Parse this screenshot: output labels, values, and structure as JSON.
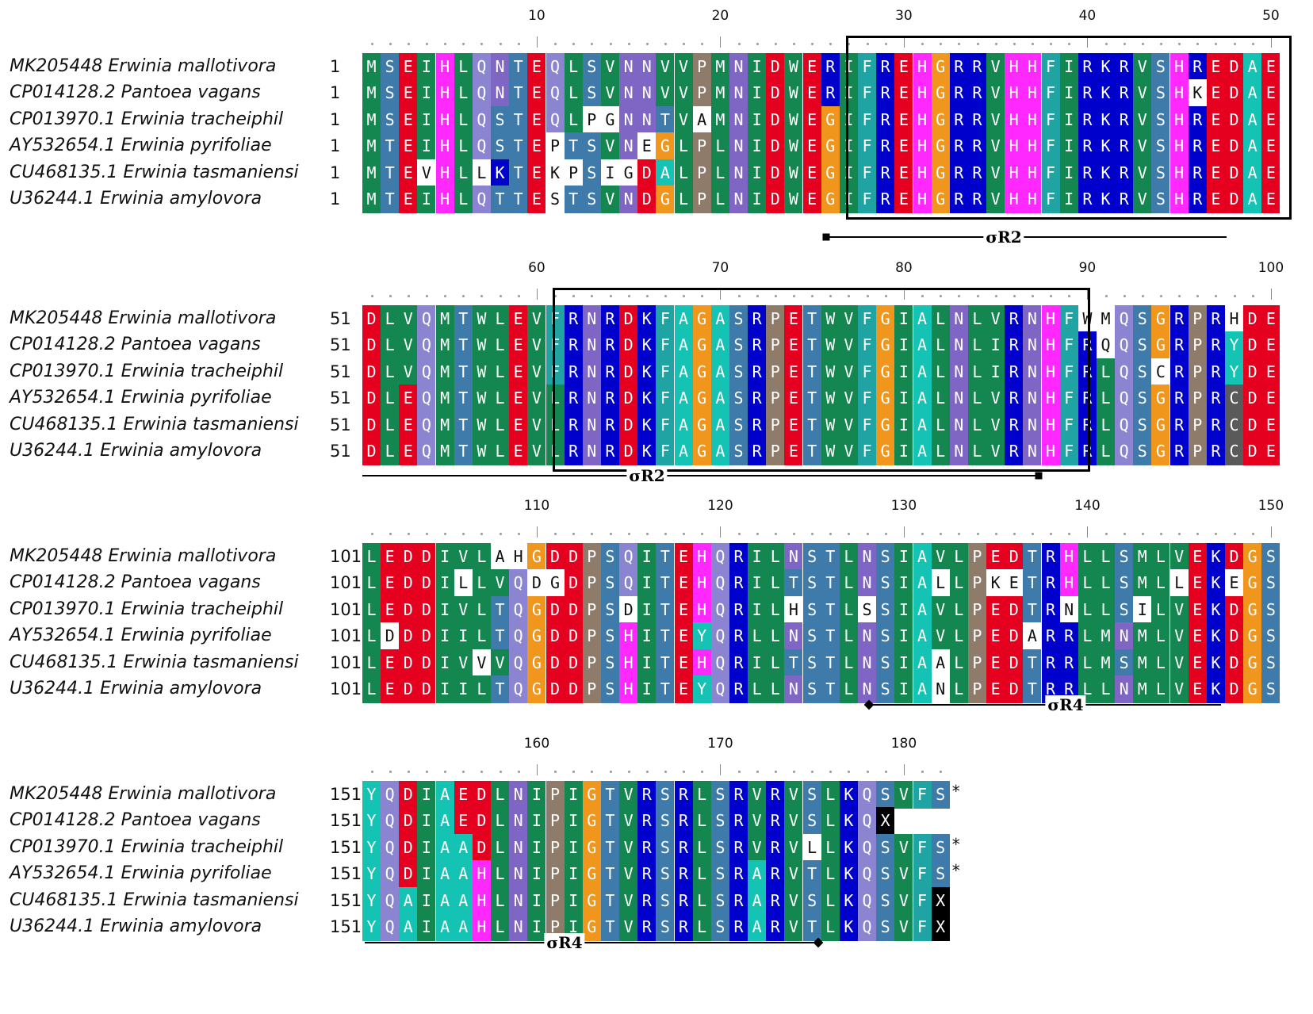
{
  "names": [
    "MK205448 Erwinia mallotivora",
    "CP014128.2 Pantoea vagans",
    "CP013970.1 Erwinia tracheiphil",
    "AY532654.1 Erwinia pyrifoliae",
    "CU468135.1 Erwinia tasmaniensi",
    "U36244.1 Erwinia amylovora"
  ],
  "blocks": [
    {
      "start": 1,
      "labels": [
        "10",
        "20",
        "30",
        "40",
        "50"
      ],
      "seqs": [
        "MSEIHLQNTEQLSVNNVVPMNIDWERIFREHGRRVHHFIRKRVSHREDAE",
        "MSEIHLQNTEQLSVNNVVPMNIDWERIFREHGRRVHHFIRKRVSHKEDAE",
        "MSEIHLQSTEQLPGNNTVAMNIDWEGIFREHGRRVHHFIRKRVSHREDAE",
        "MTEIHLQSTEPTSVNEGLPLNIDWEGIFREHGRRVHHFIRKRVSHREDAE",
        "MTEVHLLKTEKPSIGDALPLNIDWEGIFREHGRRVHHFIRKRVSHREDAE",
        "MTEIHLQTTESTSVNDGLPLNIDWEGIFREHGRRVHHFIRKRVSHREDAE"
      ],
      "domain": "σR2"
    },
    {
      "start": 51,
      "labels": [
        "60",
        "70",
        "80",
        "90",
        "100"
      ],
      "seqs": [
        "DLVQMTWLEVFRNRDKFAGASRPETWVFGIALNLVRNHFWMQSGRPRHDE",
        "DLVQMTWLEVFRNRDKFAGASRPETWVFGIALNLIRNHFRQQSGRPRYDE",
        "DLVQMTWLEVFRNRDKFAGASRPETWVFGIALNLIRNHFRLQSCRPRYDE",
        "DLEQMTWLEVLRNRDKFAGASRPETWVFGIALNLVRNHFRLQSGRPRCDE",
        "DLEQMTWLEVLRNRDKFAGASRPETWVFGIALNLVRNHFRLQSGRPRCDE",
        "DLEQMTWLEVLRNRDKFAGASRPETWVFGIALNLVRNHFRLQSGRPRCDE"
      ],
      "domain": "σR2"
    },
    {
      "start": 101,
      "labels": [
        "110",
        "120",
        "130",
        "140",
        "150"
      ],
      "seqs": [
        "LEDDIVLAHGDDPSQITEHQRILNSTLNSIAVLPEDTRHLLSMLVEKDGS",
        "LEDDILLVQDGDPSQITEHQRILTSTLNSIALLPKETRHLLSMLLEKEGS",
        "LEDDIVLTQGDDPSDITEHQRILHSTLSSIAVLPEDTRNLLSILVEKDGS",
        "LDDDIILTQGDDPSHITEYQRLLNSTLNSIAVLPEDARRLMNMLVEKDGS",
        "LEDDIVVVQGDDPSHITEHQRILTSTLNSIAALPEDTRRLMSMLVEKDGS",
        "LEDDIILTQGDDPSHITEYQRLLNSTLNSIANLPEDTRRLLNMLVEKDGS"
      ],
      "domain": "σR4"
    },
    {
      "start": 151,
      "labels": [
        "160",
        "170",
        "180"
      ],
      "seqs": [
        "YQDIAEDLNIPIGTVRSRLSRVRVSLKQSVFS",
        "YQDIAEDLNIPIGTVRSRLSRVRVSLKQX",
        "YQDIAADLNIPIGTVRSRLSRVRVLLKQSVFS",
        "YQDIAAHLNIPIGTVRSRLSRARVTLKQSVFS",
        "YQAIAAHLNIPIGTVRSRLSRARVSLKQSVFX",
        "YQAIAAHLNIPIGTVRSRLSRARVTLKQSVFX"
      ],
      "stop": "*",
      "domain": "σR4"
    }
  ],
  "colors": {
    "A": "#14c3b4",
    "C": "#5a5a5a",
    "D": "#e5001f",
    "E": "#e5001f",
    "F": "#1fa3a3",
    "G": "#f0961c",
    "H": "#ff28ff",
    "I": "#13874f",
    "K": "#0000cd",
    "L": "#13874f",
    "M": "#13874f",
    "N": "#8066c4",
    "P": "#8e7b6a",
    "Q": "#8b84d0",
    "R": "#0000cd",
    "S": "#3e7aaa",
    "T": "#3e7aaa",
    "V": "#13874f",
    "W": "#13874f",
    "Y": "#14c3b4",
    "X": "#000000"
  }
}
